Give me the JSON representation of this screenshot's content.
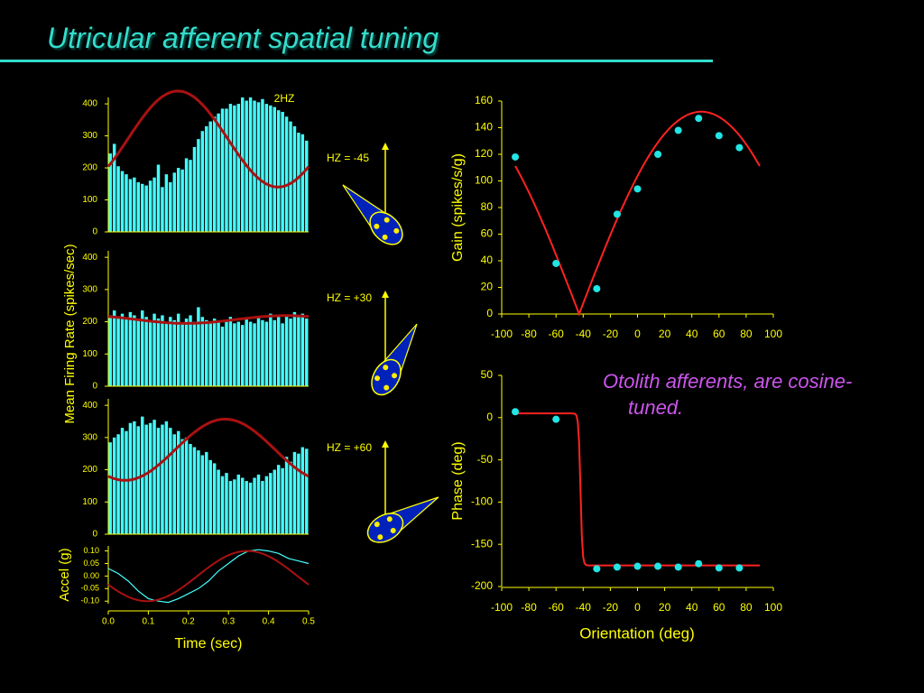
{
  "slide": {
    "title": "Utricular afferent spatial tuning",
    "annotation_line1": "Otolith afferents, are cosine-",
    "annotation_line2": "tuned."
  },
  "colors": {
    "background": "#000000",
    "title": "#33ddcc",
    "axes_text": "#ffff00",
    "histogram": "#44ffff",
    "fit": "#aa1111",
    "points": "#22e5e5",
    "curve": "#ff2222",
    "annotation": "#cc55ee",
    "otolith_fill": "#0022bb",
    "otolith_dots": "#ffee00"
  },
  "chart_data": [
    {
      "id": "firing-hz-45",
      "type": "bar",
      "tag": "2HZ",
      "ylabel": "Mean Firing Rate (spikes/sec)",
      "ylim": [
        0,
        420
      ],
      "yticks": [
        0,
        100,
        200,
        300,
        400
      ],
      "xlim": [
        0,
        0.5
      ],
      "x": [
        0.005,
        0.015,
        0.025,
        0.035,
        0.045,
        0.055,
        0.065,
        0.075,
        0.085,
        0.095,
        0.105,
        0.115,
        0.125,
        0.135,
        0.145,
        0.155,
        0.165,
        0.175,
        0.185,
        0.195,
        0.205,
        0.215,
        0.225,
        0.235,
        0.245,
        0.255,
        0.265,
        0.275,
        0.285,
        0.295,
        0.305,
        0.315,
        0.325,
        0.335,
        0.345,
        0.355,
        0.365,
        0.375,
        0.385,
        0.395,
        0.405,
        0.415,
        0.425,
        0.435,
        0.445,
        0.455,
        0.465,
        0.475,
        0.485,
        0.495
      ],
      "values": [
        245,
        275,
        205,
        190,
        180,
        165,
        170,
        155,
        150,
        145,
        160,
        170,
        210,
        140,
        180,
        155,
        185,
        200,
        195,
        230,
        225,
        265,
        290,
        315,
        330,
        345,
        360,
        370,
        385,
        385,
        400,
        395,
        400,
        420,
        410,
        420,
        410,
        405,
        415,
        400,
        395,
        390,
        380,
        375,
        360,
        345,
        330,
        310,
        305,
        285
      ],
      "fit": {
        "mean": 290,
        "amplitude": 150,
        "phase_deg": 35
      }
    },
    {
      "id": "firing-hz-30",
      "type": "bar",
      "ylim": [
        0,
        420
      ],
      "yticks": [
        0,
        100,
        200,
        300,
        400
      ],
      "xlim": [
        0,
        0.5
      ],
      "x": [
        0.005,
        0.015,
        0.025,
        0.035,
        0.045,
        0.055,
        0.065,
        0.075,
        0.085,
        0.095,
        0.105,
        0.115,
        0.125,
        0.135,
        0.145,
        0.155,
        0.165,
        0.175,
        0.185,
        0.195,
        0.205,
        0.215,
        0.225,
        0.235,
        0.245,
        0.255,
        0.265,
        0.275,
        0.285,
        0.295,
        0.305,
        0.315,
        0.325,
        0.335,
        0.345,
        0.355,
        0.365,
        0.375,
        0.385,
        0.395,
        0.405,
        0.415,
        0.425,
        0.435,
        0.445,
        0.455,
        0.465,
        0.475,
        0.485,
        0.495
      ],
      "values": [
        220,
        235,
        215,
        225,
        210,
        230,
        220,
        205,
        235,
        215,
        200,
        225,
        210,
        220,
        200,
        215,
        205,
        225,
        195,
        210,
        220,
        200,
        245,
        215,
        205,
        195,
        210,
        200,
        185,
        205,
        215,
        195,
        200,
        190,
        210,
        200,
        195,
        215,
        205,
        200,
        225,
        205,
        215,
        195,
        220,
        210,
        230,
        215,
        225,
        210
      ],
      "fit": {
        "mean": 207,
        "amplitude": 12,
        "phase_deg": 230
      }
    },
    {
      "id": "firing-hz-60",
      "type": "bar",
      "ylim": [
        0,
        420
      ],
      "yticks": [
        0,
        100,
        200,
        300,
        400
      ],
      "xlim": [
        0,
        0.5
      ],
      "x": [
        0.005,
        0.015,
        0.025,
        0.035,
        0.045,
        0.055,
        0.065,
        0.075,
        0.085,
        0.095,
        0.105,
        0.115,
        0.125,
        0.135,
        0.145,
        0.155,
        0.165,
        0.175,
        0.185,
        0.195,
        0.205,
        0.215,
        0.225,
        0.235,
        0.245,
        0.255,
        0.265,
        0.275,
        0.285,
        0.295,
        0.305,
        0.315,
        0.325,
        0.335,
        0.345,
        0.355,
        0.365,
        0.375,
        0.385,
        0.395,
        0.405,
        0.415,
        0.425,
        0.435,
        0.445,
        0.455,
        0.465,
        0.475,
        0.485,
        0.495
      ],
      "values": [
        285,
        300,
        310,
        330,
        320,
        345,
        350,
        335,
        365,
        340,
        345,
        355,
        330,
        340,
        350,
        330,
        310,
        320,
        295,
        300,
        280,
        270,
        260,
        245,
        255,
        230,
        220,
        200,
        180,
        190,
        165,
        170,
        185,
        175,
        165,
        160,
        175,
        185,
        165,
        180,
        190,
        200,
        215,
        205,
        240,
        225,
        255,
        250,
        270,
        265
      ],
      "fit": {
        "mean": 262,
        "amplitude": 95,
        "phase_deg": 120
      }
    },
    {
      "id": "accel",
      "type": "line",
      "ylabel": "Accel (g)",
      "xlabel": "Time (sec)",
      "ylim": [
        -0.11,
        0.12
      ],
      "yticks": [
        0.1,
        0.05,
        0.0,
        -0.05,
        -0.1
      ],
      "ytick_labels": [
        "0.10",
        "0.05",
        "0.00",
        "-0.05",
        "-0.10"
      ],
      "xlim": [
        0,
        0.5
      ],
      "xticks": [
        0.0,
        0.1,
        0.2,
        0.3,
        0.4,
        0.5
      ],
      "xtick_labels": [
        "0.0",
        "0.1",
        "0.2",
        "0.3",
        "0.4",
        "0.5"
      ],
      "x": [
        0,
        0.025,
        0.05,
        0.075,
        0.1,
        0.125,
        0.15,
        0.175,
        0.2,
        0.225,
        0.25,
        0.275,
        0.3,
        0.325,
        0.35,
        0.375,
        0.4,
        0.425,
        0.45,
        0.475,
        0.5
      ],
      "measured": [
        0.03,
        0.01,
        -0.02,
        -0.06,
        -0.09,
        -0.1,
        -0.105,
        -0.09,
        -0.07,
        -0.05,
        -0.02,
        0.02,
        0.05,
        0.08,
        0.1,
        0.105,
        0.1,
        0.09,
        0.07,
        0.06,
        0.05
      ],
      "fit": {
        "amplitude": 0.1,
        "phase_deg": 160
      }
    },
    {
      "id": "gain",
      "type": "scatter",
      "ylabel": "Gain (spikes/s/g)",
      "xlim": [
        -100,
        100
      ],
      "xticks": [
        -100,
        -80,
        -60,
        -40,
        -20,
        0,
        20,
        40,
        60,
        80,
        100
      ],
      "xtick_labels": [
        "-100",
        "-80",
        "-60",
        "-40",
        "-20",
        "0",
        "20",
        "40",
        "60",
        "80",
        "100"
      ],
      "ylim": [
        0,
        160
      ],
      "yticks": [
        0,
        20,
        40,
        60,
        80,
        100,
        120,
        140,
        160
      ],
      "ytick_labels": [
        "0",
        "20",
        "40",
        "60",
        "80",
        "100",
        "120",
        "140",
        "160"
      ],
      "points": [
        [
          -90,
          118
        ],
        [
          -60,
          38
        ],
        [
          -30,
          19
        ],
        [
          -15,
          75
        ],
        [
          0,
          94
        ],
        [
          15,
          120
        ],
        [
          30,
          138
        ],
        [
          45,
          147
        ],
        [
          60,
          134
        ],
        [
          75,
          125
        ]
      ],
      "fit": {
        "type": "abs-cosine",
        "amplitude": 152,
        "preferred_deg": 47,
        "x_range": [
          -90,
          90
        ]
      }
    },
    {
      "id": "phase",
      "type": "scatter",
      "ylabel": "Phase (deg)",
      "xlabel": "Orientation (deg)",
      "xlim": [
        -100,
        100
      ],
      "xticks": [
        -100,
        -80,
        -60,
        -40,
        -20,
        0,
        20,
        40,
        60,
        80,
        100
      ],
      "xtick_labels": [
        "-100",
        "-80",
        "-60",
        "-40",
        "-20",
        "0",
        "20",
        "40",
        "60",
        "80",
        "100"
      ],
      "ylim": [
        -200,
        50
      ],
      "yticks": [
        50,
        0,
        -50,
        -100,
        -150,
        -200
      ],
      "ytick_labels": [
        "50",
        "0",
        "-50",
        "-100",
        "-150",
        "-200"
      ],
      "points": [
        [
          -90,
          7
        ],
        [
          -60,
          -2
        ],
        [
          -30,
          -179
        ],
        [
          -15,
          -177
        ],
        [
          0,
          -176
        ],
        [
          15,
          -176
        ],
        [
          30,
          -177
        ],
        [
          45,
          -173
        ],
        [
          60,
          -178
        ],
        [
          75,
          -178
        ]
      ],
      "fit": {
        "type": "step",
        "high": 5,
        "low": -175,
        "step_at": -42,
        "x_range": [
          -90,
          90
        ]
      }
    }
  ],
  "orientation_panels": [
    {
      "label": "HZ = -45",
      "angle_deg": -45
    },
    {
      "label": "HZ = +30",
      "angle_deg": 30
    },
    {
      "label": "HZ = +60",
      "angle_deg": 60
    }
  ]
}
